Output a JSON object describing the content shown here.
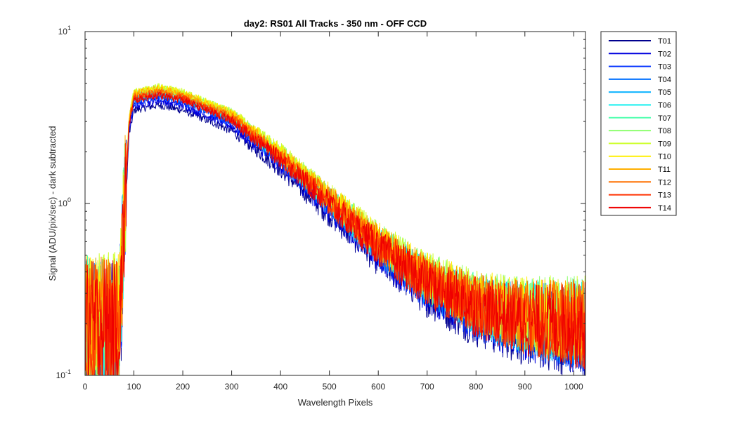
{
  "chart_data": {
    "type": "line",
    "title": "day2: RS01  All Tracks - 350 nm - OFF CCD",
    "xlabel": "Wavelength Pixels",
    "ylabel": "Signal (ADU/pix/sec) - dark subtracted",
    "xlim": [
      0,
      1024
    ],
    "ylim": [
      0.1,
      10
    ],
    "yscale": "log",
    "grid": false,
    "legend_position": "outside-top-right",
    "x_ticks": [
      "0",
      "100",
      "200",
      "300",
      "400",
      "500",
      "600",
      "700",
      "800",
      "900",
      "1000"
    ],
    "y_ticks": [
      {
        "base": "10",
        "exp": "-1"
      },
      {
        "base": "10",
        "exp": "0"
      },
      {
        "base": "10",
        "exp": "1"
      }
    ],
    "series_profile": {
      "x": [
        0,
        70,
        80,
        90,
        100,
        150,
        200,
        300,
        400,
        500,
        600,
        700,
        800,
        900,
        1024
      ],
      "y": [
        0.2,
        0.2,
        0.8,
        3.0,
        4.2,
        4.5,
        4.2,
        3.2,
        1.9,
        1.05,
        0.58,
        0.36,
        0.26,
        0.22,
        0.2
      ]
    },
    "series": [
      {
        "name": "T01",
        "color": "#00008F",
        "scale": 0.83
      },
      {
        "name": "T02",
        "color": "#0000DF",
        "scale": 0.88
      },
      {
        "name": "T03",
        "color": "#0030FF",
        "scale": 0.92
      },
      {
        "name": "T04",
        "color": "#0070FF",
        "scale": 0.95
      },
      {
        "name": "T05",
        "color": "#00AFFF",
        "scale": 0.97
      },
      {
        "name": "T06",
        "color": "#10EFEF",
        "scale": 0.99
      },
      {
        "name": "T07",
        "color": "#50FFAF",
        "scale": 1.02
      },
      {
        "name": "T08",
        "color": "#8FFF70",
        "scale": 1.05
      },
      {
        "name": "T09",
        "color": "#CFFF30",
        "scale": 1.06
      },
      {
        "name": "T10",
        "color": "#FFEF00",
        "scale": 1.05
      },
      {
        "name": "T11",
        "color": "#FFAF00",
        "scale": 1.03
      },
      {
        "name": "T12",
        "color": "#FF7000",
        "scale": 1.0
      },
      {
        "name": "T13",
        "color": "#FF3000",
        "scale": 0.97
      },
      {
        "name": "T14",
        "color": "#EF0000",
        "scale": 0.95
      }
    ]
  }
}
